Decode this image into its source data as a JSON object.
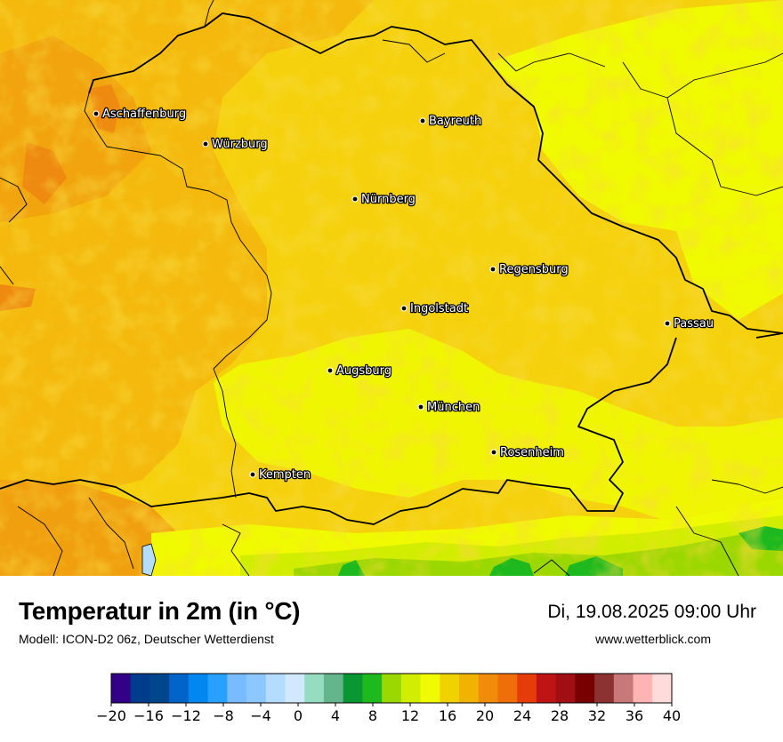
{
  "title": "Temperatur in 2m (in °C)",
  "subtitle": "Modell: ICON-D2 06z, Deutscher Wetterdienst",
  "datetime": "Di, 19.08.2025 09:00 Uhr",
  "website": "www.wetterblick.com",
  "cities": [
    {
      "name": "Aschaffenburg"
    },
    {
      "name": "Würzburg"
    },
    {
      "name": "Bayreuth"
    },
    {
      "name": "Nürnberg"
    },
    {
      "name": "Regensburg"
    },
    {
      "name": "Ingolstadt"
    },
    {
      "name": "Passau"
    },
    {
      "name": "Augsburg"
    },
    {
      "name": "München"
    },
    {
      "name": "Rosenheim"
    },
    {
      "name": "Kempten"
    }
  ],
  "legend": {
    "min": -20,
    "max": 40,
    "step": 2,
    "tick_labels": [
      "−20",
      "−16",
      "−12",
      "−8",
      "−4",
      "0",
      "4",
      "8",
      "12",
      "16",
      "20",
      "24",
      "28",
      "32",
      "36",
      "40"
    ],
    "colors": [
      "#330088",
      "#003c8c",
      "#00468c",
      "#0064c8",
      "#0088f0",
      "#28a0ff",
      "#78bcff",
      "#8cc8ff",
      "#b4dcff",
      "#d2e8ff",
      "#96dcc0",
      "#64b48c",
      "#0a9632",
      "#1eb91e",
      "#9bd700",
      "#d2ee00",
      "#f0fa00",
      "#f0d200",
      "#f0b400",
      "#f08c0a",
      "#f06e0a",
      "#e63c0a",
      "#be1414",
      "#a00f14",
      "#780000",
      "#8c3232",
      "#c87878",
      "#ffb4b4",
      "#ffdcdc"
    ]
  },
  "map_colors": {
    "base": "#f5d10d",
    "warm": "#f4b90c",
    "warmer": "#f0a00f",
    "hot": "#ee8a10",
    "cool": "#f0fa00",
    "cooler": "#d2ee00",
    "green": "#9bd700",
    "dark_green": "#1eb91e"
  }
}
